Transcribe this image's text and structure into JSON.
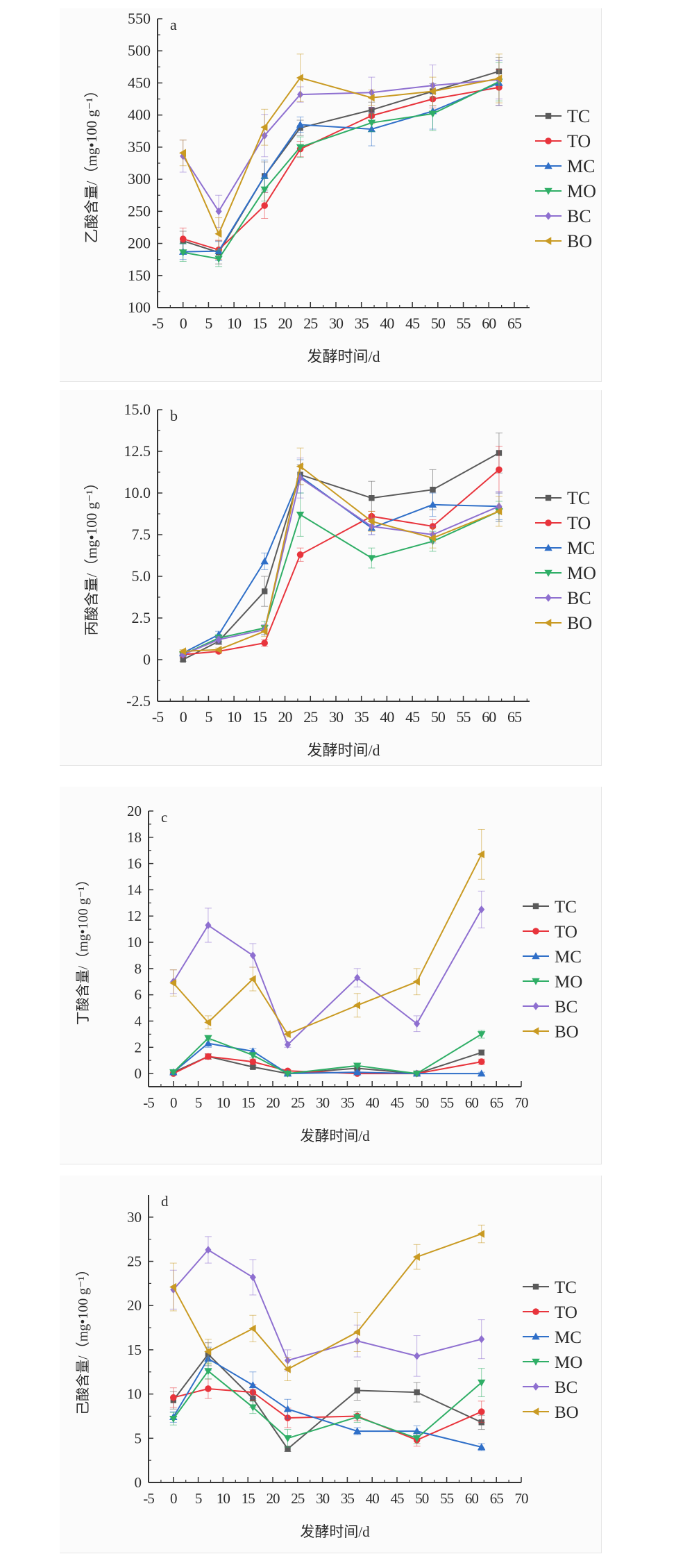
{
  "series_colors": {
    "TC": "#5a5a5a",
    "TO": "#e8343c",
    "MC": "#2f6fc8",
    "MO": "#2fae66",
    "BC": "#8e6fd0",
    "BO": "#c99a22"
  },
  "chart_data": [
    {
      "type": "line",
      "panel_label": "a",
      "ylabel": "乙酸含量/（mg•100 g⁻¹）",
      "xlabel": "发酵时间/d",
      "xlim": [
        -5,
        68
      ],
      "xticks": [
        -5,
        0,
        5,
        10,
        15,
        20,
        25,
        30,
        35,
        40,
        45,
        50,
        55,
        60,
        65
      ],
      "ylim": [
        100,
        550
      ],
      "yticks": [
        100,
        150,
        200,
        250,
        300,
        350,
        400,
        450,
        500,
        550
      ],
      "ytick_labels": [
        "100",
        "150",
        "200",
        "250",
        "300",
        "350",
        "400",
        "450",
        "500",
        "550"
      ],
      "legend": "right",
      "x": [
        0,
        7,
        16,
        23,
        37,
        49,
        62
      ],
      "series": [
        {
          "name": "TC",
          "marker": "square",
          "values": [
            204,
            186,
            305,
            380,
            408,
            437,
            468
          ],
          "errors": [
            15,
            18,
            22,
            12,
            12,
            12,
            22
          ]
        },
        {
          "name": "TO",
          "marker": "circle",
          "values": [
            207,
            190,
            259,
            347,
            399,
            425,
            443
          ],
          "errors": [
            17,
            15,
            20,
            12,
            12,
            14,
            28
          ]
        },
        {
          "name": "MC",
          "marker": "triangle-up",
          "values": [
            187,
            188,
            305,
            385,
            378,
            406,
            450
          ],
          "errors": [
            12,
            15,
            25,
            12,
            26,
            28,
            35
          ]
        },
        {
          "name": "MO",
          "marker": "triangle-down",
          "values": [
            186,
            176,
            284,
            350,
            388,
            402,
            452
          ],
          "errors": [
            14,
            12,
            18,
            16,
            14,
            26,
            30
          ]
        },
        {
          "name": "BC",
          "marker": "diamond",
          "values": [
            336,
            250,
            368,
            432,
            435,
            446,
            455
          ],
          "errors": [
            25,
            25,
            33,
            12,
            24,
            32,
            30
          ]
        },
        {
          "name": "BO",
          "marker": "triangle-left",
          "values": [
            341,
            215,
            381,
            458,
            427,
            437,
            457
          ],
          "errors": [
            20,
            25,
            28,
            37,
            12,
            22,
            38
          ]
        }
      ]
    },
    {
      "type": "line",
      "panel_label": "b",
      "ylabel": "丙酸含量/（mg•100 g⁻¹）",
      "xlabel": "发酵时间/d",
      "xlim": [
        -5,
        68
      ],
      "xticks": [
        -5,
        0,
        5,
        10,
        15,
        20,
        25,
        30,
        35,
        40,
        45,
        50,
        55,
        60,
        65
      ],
      "ylim": [
        -2.5,
        15.0
      ],
      "yticks": [
        -2.5,
        0,
        2.5,
        5.0,
        7.5,
        10.0,
        12.5,
        15.0
      ],
      "ytick_labels": [
        "-2.5",
        "0",
        "2.5",
        "5.0",
        "7.5",
        "10.0",
        "12.5",
        "15.0"
      ],
      "legend": "right",
      "x": [
        0,
        7,
        16,
        23,
        37,
        49,
        62
      ],
      "series": [
        {
          "name": "TC",
          "marker": "square",
          "values": [
            0.0,
            1.1,
            4.1,
            11.1,
            9.7,
            10.2,
            12.4
          ],
          "errors": [
            0.1,
            0.2,
            0.9,
            0.6,
            1.0,
            1.2,
            1.2
          ]
        },
        {
          "name": "TO",
          "marker": "circle",
          "values": [
            0.3,
            0.5,
            1.0,
            6.3,
            8.6,
            8.0,
            11.4
          ],
          "errors": [
            0.1,
            0.1,
            0.2,
            0.4,
            0.3,
            0.4,
            1.4
          ]
        },
        {
          "name": "MC",
          "marker": "triangle-up",
          "values": [
            0.4,
            1.5,
            5.9,
            11.0,
            7.9,
            9.3,
            9.2
          ],
          "errors": [
            0.1,
            0.2,
            0.5,
            1.0,
            0.4,
            0.7,
            0.8
          ]
        },
        {
          "name": "MO",
          "marker": "triangle-down",
          "values": [
            0.3,
            1.3,
            1.9,
            8.7,
            6.1,
            7.1,
            8.9
          ],
          "errors": [
            0.1,
            0.2,
            0.4,
            1.3,
            0.6,
            0.6,
            0.6
          ]
        },
        {
          "name": "BC",
          "marker": "diamond",
          "values": [
            0.3,
            1.2,
            1.8,
            10.9,
            8.0,
            7.5,
            9.2
          ],
          "errors": [
            0.1,
            0.2,
            0.3,
            1.2,
            0.5,
            0.5,
            0.9
          ]
        },
        {
          "name": "BO",
          "marker": "triangle-left",
          "values": [
            0.5,
            0.6,
            1.7,
            11.6,
            8.3,
            7.3,
            8.9
          ],
          "errors": [
            0.1,
            0.1,
            0.3,
            1.1,
            0.6,
            0.6,
            0.9
          ]
        }
      ]
    },
    {
      "type": "line",
      "panel_label": "c",
      "ylabel": "丁酸含量/（mg•100 g⁻¹）",
      "xlabel": "发酵时间/d",
      "xlim": [
        -5,
        70
      ],
      "xticks": [
        -5,
        0,
        5,
        10,
        15,
        20,
        25,
        30,
        35,
        40,
        45,
        50,
        55,
        60,
        65,
        70
      ],
      "ylim": [
        -1,
        20
      ],
      "yticks": [
        0,
        2,
        4,
        6,
        8,
        10,
        12,
        14,
        16,
        18,
        20
      ],
      "ytick_labels": [
        "0",
        "2",
        "4",
        "6",
        "8",
        "10",
        "12",
        "14",
        "16",
        "18",
        "20"
      ],
      "legend": "right",
      "x": [
        0,
        7,
        16,
        23,
        37,
        49,
        62
      ],
      "series": [
        {
          "name": "TC",
          "marker": "square",
          "values": [
            0.1,
            1.3,
            0.5,
            0.0,
            0.4,
            0.0,
            1.6
          ],
          "errors": [
            0.1,
            0.2,
            0.1,
            0.1,
            0.1,
            0.1,
            0.2
          ]
        },
        {
          "name": "TO",
          "marker": "circle",
          "values": [
            0.0,
            1.3,
            0.9,
            0.2,
            0.0,
            0.0,
            0.9
          ],
          "errors": [
            0.1,
            0.2,
            0.2,
            0.1,
            0.1,
            0.1,
            0.2
          ]
        },
        {
          "name": "MC",
          "marker": "triangle-up",
          "values": [
            0.1,
            2.3,
            1.7,
            0.0,
            0.1,
            0.0,
            0.0
          ],
          "errors": [
            0.1,
            0.3,
            0.2,
            0.1,
            0.1,
            0.1,
            0.1
          ]
        },
        {
          "name": "MO",
          "marker": "triangle-down",
          "values": [
            0.1,
            2.7,
            1.4,
            0.0,
            0.6,
            0.0,
            3.0
          ],
          "errors": [
            0.1,
            0.2,
            0.2,
            0.1,
            0.1,
            0.1,
            0.3
          ]
        },
        {
          "name": "BC",
          "marker": "diamond",
          "values": [
            7.0,
            11.3,
            9.0,
            2.2,
            7.3,
            3.8,
            12.5
          ],
          "errors": [
            0.9,
            1.3,
            0.9,
            0.2,
            0.7,
            0.6,
            1.4
          ]
        },
        {
          "name": "BO",
          "marker": "triangle-left",
          "values": [
            6.9,
            3.9,
            7.2,
            3.0,
            5.2,
            7.0,
            16.7
          ],
          "errors": [
            1.0,
            0.5,
            0.9,
            0.2,
            0.9,
            1.0,
            1.9
          ]
        }
      ]
    },
    {
      "type": "line",
      "panel_label": "d",
      "ylabel": "己酸含量/（mg•100 g⁻¹）",
      "xlabel": "发酵时间/d",
      "xlim": [
        -5,
        70
      ],
      "xticks": [
        -5,
        0,
        5,
        10,
        15,
        20,
        25,
        30,
        35,
        40,
        45,
        50,
        55,
        60,
        65,
        70
      ],
      "ylim": [
        0,
        32.5
      ],
      "yticks": [
        0,
        5,
        10,
        15,
        20,
        25,
        30
      ],
      "ytick_labels": [
        "0",
        "5",
        "10",
        "15",
        "20",
        "25",
        "30"
      ],
      "legend": "right",
      "x": [
        0,
        7,
        16,
        23,
        37,
        49,
        62
      ],
      "series": [
        {
          "name": "TC",
          "marker": "square",
          "values": [
            9.3,
            14.5,
            9.5,
            3.8,
            10.4,
            10.2,
            6.8
          ],
          "errors": [
            1.0,
            1.3,
            1.0,
            0.3,
            1.1,
            1.1,
            0.8
          ]
        },
        {
          "name": "TO",
          "marker": "circle",
          "values": [
            9.6,
            10.6,
            10.2,
            7.3,
            7.5,
            4.8,
            8.0
          ],
          "errors": [
            1.1,
            1.1,
            0.9,
            1.1,
            0.5,
            0.7,
            1.2
          ]
        },
        {
          "name": "MC",
          "marker": "triangle-up",
          "values": [
            7.4,
            14.0,
            11.0,
            8.3,
            5.8,
            5.8,
            4.0
          ],
          "errors": [
            0.6,
            1.3,
            1.5,
            1.1,
            0.4,
            0.6,
            0.4
          ]
        },
        {
          "name": "MO",
          "marker": "triangle-down",
          "values": [
            7.2,
            12.6,
            8.5,
            5.0,
            7.4,
            5.0,
            11.3
          ],
          "errors": [
            0.7,
            0.9,
            0.7,
            1.0,
            0.6,
            0.6,
            1.6
          ]
        },
        {
          "name": "BC",
          "marker": "diamond",
          "values": [
            21.8,
            26.3,
            23.2,
            13.8,
            16.0,
            14.3,
            16.2
          ],
          "errors": [
            2.2,
            1.5,
            2.0,
            1.2,
            1.8,
            2.3,
            2.2
          ]
        },
        {
          "name": "BO",
          "marker": "triangle-left",
          "values": [
            22.1,
            14.8,
            17.4,
            12.8,
            17.0,
            25.5,
            28.1
          ],
          "errors": [
            2.7,
            1.4,
            1.5,
            1.3,
            2.2,
            1.4,
            1.0
          ]
        }
      ]
    }
  ]
}
